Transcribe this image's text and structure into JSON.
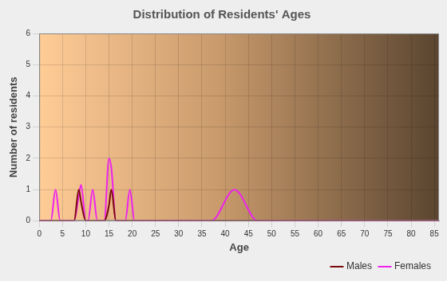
{
  "chart_data": {
    "type": "line",
    "title": "Distribution of Residents' Ages",
    "x_label": "Age",
    "y_label": "Number of residents",
    "x": [
      0,
      2.5,
      3.5,
      4.5,
      7.5,
      8.5,
      9,
      10,
      10.5,
      11.5,
      12.5,
      14,
      15,
      15.5,
      16.5,
      18.5,
      19.5,
      20.5,
      37,
      42,
      47,
      86
    ],
    "series": [
      {
        "name": "Males",
        "color": "#7a0a0a",
        "values": [
          0,
          0,
          0,
          0,
          0,
          1,
          0.6,
          0,
          0,
          0,
          0,
          0,
          0.5,
          1,
          0,
          0,
          0,
          0,
          0,
          0,
          0,
          0
        ]
      },
      {
        "name": "Females",
        "color": "#ee22ee",
        "values": [
          0,
          0,
          1,
          0,
          0,
          0.8,
          1.15,
          0,
          0,
          1,
          0,
          0,
          2,
          1.7,
          0,
          0,
          1,
          0,
          0,
          1,
          0,
          0
        ]
      }
    ],
    "xlim": [
      0,
      86
    ],
    "xticks": [
      0,
      5,
      10,
      15,
      20,
      25,
      30,
      35,
      40,
      45,
      50,
      55,
      60,
      65,
      70,
      75,
      80,
      85
    ],
    "ylim": [
      0,
      6
    ],
    "yticks": [
      0,
      1,
      2,
      3,
      4,
      5,
      6
    ],
    "grid": true,
    "legend": "bottom-right"
  }
}
